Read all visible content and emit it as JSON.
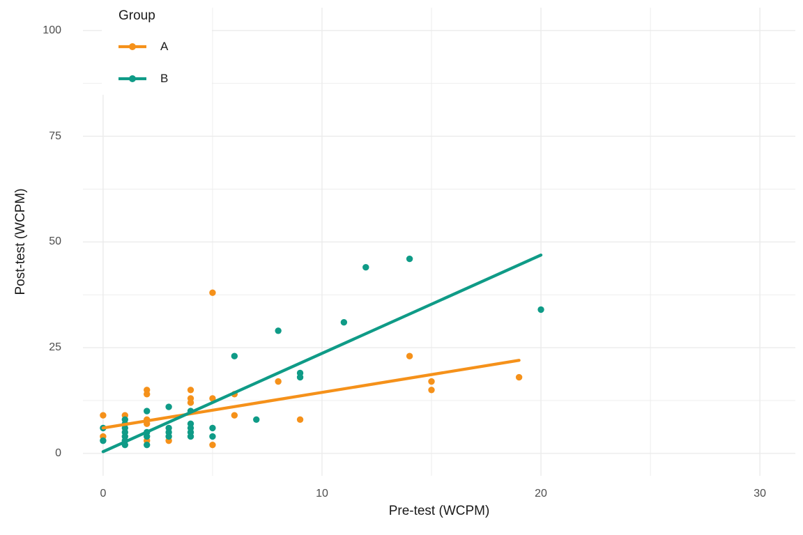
{
  "chart_data": {
    "type": "scatter",
    "title": "",
    "xlabel": "Pre-test (WCPM)",
    "ylabel": "Post-test (WCPM)",
    "xlim": [
      0,
      30
    ],
    "ylim": [
      0,
      100
    ],
    "x_ticks": [
      "0",
      "10",
      "20",
      "30"
    ],
    "x_tick_values": [
      0,
      10,
      20,
      30
    ],
    "x_minor_gridlines": [
      5,
      15,
      25
    ],
    "y_ticks": [
      "0",
      "25",
      "50",
      "75",
      "100"
    ],
    "y_tick_values": [
      0,
      25,
      50,
      75,
      100
    ],
    "y_minor_gridlines": [
      12.5,
      37.5,
      62.5,
      87.5
    ],
    "grid": true,
    "legend": {
      "title": "Group",
      "position": "top-left-inside"
    },
    "series": [
      {
        "name": "A",
        "color": "#F5911A",
        "points": [
          [
            0,
            9
          ],
          [
            0,
            4
          ],
          [
            1,
            9
          ],
          [
            2,
            15
          ],
          [
            2,
            14
          ],
          [
            2,
            8
          ],
          [
            2,
            7
          ],
          [
            2,
            3
          ],
          [
            3,
            3
          ],
          [
            4,
            15
          ],
          [
            4,
            13
          ],
          [
            4,
            12
          ],
          [
            5,
            38
          ],
          [
            5,
            13
          ],
          [
            5,
            2
          ],
          [
            6,
            14
          ],
          [
            6,
            9
          ],
          [
            8,
            17
          ],
          [
            9,
            8
          ],
          [
            14,
            23
          ],
          [
            15,
            17
          ],
          [
            15,
            15
          ],
          [
            19,
            18
          ]
        ],
        "trend": {
          "x1": 0,
          "y1": 6.0,
          "x2": 19,
          "y2": 22.0
        }
      },
      {
        "name": "B",
        "color": "#0F9B87",
        "points": [
          [
            0,
            6
          ],
          [
            0,
            3
          ],
          [
            1,
            8
          ],
          [
            1,
            7
          ],
          [
            1,
            6
          ],
          [
            1,
            5
          ],
          [
            1,
            4
          ],
          [
            1,
            3
          ],
          [
            1,
            2
          ],
          [
            2,
            10
          ],
          [
            2,
            5
          ],
          [
            2,
            4
          ],
          [
            2,
            2
          ],
          [
            3,
            11
          ],
          [
            3,
            6
          ],
          [
            3,
            5
          ],
          [
            3,
            4
          ],
          [
            4,
            10
          ],
          [
            4,
            7
          ],
          [
            4,
            6
          ],
          [
            4,
            5
          ],
          [
            4,
            4
          ],
          [
            5,
            6
          ],
          [
            5,
            4
          ],
          [
            6,
            23
          ],
          [
            7,
            8
          ],
          [
            8,
            29
          ],
          [
            9,
            19
          ],
          [
            9,
            18
          ],
          [
            11,
            31
          ],
          [
            12,
            44
          ],
          [
            14,
            46
          ],
          [
            20,
            34
          ]
        ],
        "trend": {
          "x1": 0,
          "y1": 0.4,
          "x2": 20,
          "y2": 46.9
        }
      }
    ],
    "colors": {
      "background": "#FFFFFF",
      "gridline": "#EBEBEB",
      "tick_text": "#4D4D4D",
      "title_text": "#1A1A1A"
    }
  }
}
